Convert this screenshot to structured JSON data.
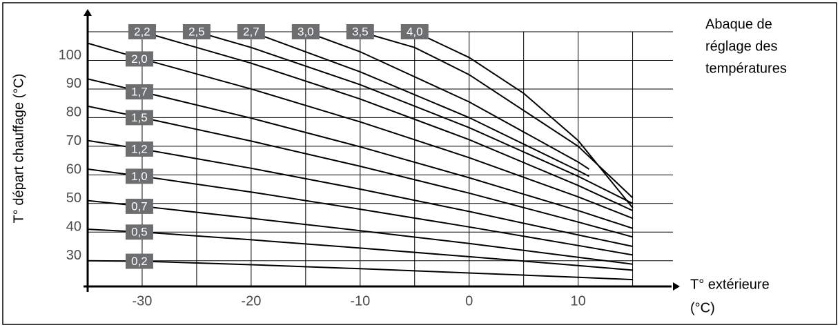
{
  "chart_data": {
    "type": "line",
    "title": [
      "Abaque de",
      "réglage des",
      "températures"
    ],
    "x_label": [
      "T° extérieure",
      "(°C)"
    ],
    "y_label": "T° départ chauffage (°C)",
    "xlim": [
      -35,
      18.7
    ],
    "ylim": [
      21,
      117
    ],
    "xticks": [
      -30,
      {
        "value": -25,
        "label": null
      },
      -20,
      {
        "value": -15,
        "label": null
      },
      -10,
      {
        "value": -5,
        "label": null
      },
      0,
      {
        "value": 5,
        "label": null
      },
      10,
      {
        "value": 15,
        "label": null
      }
    ],
    "yticks": [
      30,
      40,
      50,
      60,
      70,
      80,
      90,
      100,
      {
        "value": 110,
        "label": null
      }
    ],
    "grid": true,
    "color": "#000000",
    "label_color": "#6d6e70",
    "series": [
      {
        "name": "0,2",
        "x": [
          -35,
          -30,
          -20,
          -10,
          0,
          10,
          15
        ],
        "values": [
          30,
          29.8,
          28.6,
          27.2,
          25.7,
          24.2,
          23.4
        ]
      },
      {
        "name": "0,5",
        "x": [
          -35,
          -30,
          -20,
          -10,
          0,
          10,
          15
        ],
        "values": [
          41,
          40,
          37.3,
          34.4,
          31.4,
          28.3,
          26.7
        ]
      },
      {
        "name": "0,7",
        "x": [
          -35,
          -30,
          -20,
          -10,
          0,
          10,
          15
        ],
        "values": [
          51,
          49,
          44.8,
          40.5,
          36,
          31.2,
          28.8
        ]
      },
      {
        "name": "1,0",
        "x": [
          -35,
          -30,
          -20,
          -10,
          0,
          10,
          15
        ],
        "values": [
          62,
          59.5,
          54,
          48,
          41.8,
          35.3,
          32
        ]
      },
      {
        "name": "1,2",
        "x": [
          -35,
          -30,
          -20,
          -10,
          0,
          10,
          15
        ],
        "values": [
          72,
          69,
          62.3,
          55,
          47.2,
          39,
          35
        ]
      },
      {
        "name": "1,5",
        "x": [
          -35,
          -30,
          -20,
          -10,
          0,
          10,
          15
        ],
        "values": [
          84,
          80,
          71.8,
          63,
          53.6,
          43.5,
          38.3
        ]
      },
      {
        "name": "1,7",
        "x": [
          -35,
          -30,
          -20,
          -10,
          0,
          10,
          15
        ],
        "values": [
          93.5,
          89,
          79.8,
          69.8,
          59,
          47.5,
          41.3
        ]
      },
      {
        "name": "2,0",
        "x": [
          -35,
          -30,
          -20,
          -10,
          0,
          10,
          15
        ],
        "values": [
          106,
          100.5,
          90,
          78.5,
          66,
          52.3,
          44.8
        ]
      },
      {
        "name": "2,2",
        "x": [
          -30,
          -20,
          -10,
          0,
          10,
          15
        ],
        "values": [
          110,
          99,
          86.5,
          72.3,
          56.3,
          47.5
        ]
      },
      {
        "name": "2,5",
        "x": [
          -25,
          -20,
          -10,
          0,
          10,
          15
        ],
        "values": [
          110,
          104.5,
          91.5,
          76.5,
          59.5,
          50
        ]
      },
      {
        "name": "2,7",
        "x": [
          -20,
          -10,
          0,
          10,
          11
        ],
        "values": [
          110,
          96,
          80,
          61.5,
          59.5
        ]
      },
      {
        "name": "3,0",
        "x": [
          -15,
          -10,
          0,
          10,
          11
        ],
        "values": [
          110,
          103,
          85.5,
          64.5,
          62
        ]
      },
      {
        "name": "3,5",
        "x": [
          -10,
          -5,
          0,
          10,
          15
        ],
        "values": [
          110,
          104.5,
          95,
          70,
          52
        ]
      },
      {
        "name": "4,0",
        "x": [
          -5,
          0,
          5,
          10,
          15
        ],
        "values": [
          110,
          101,
          88.5,
          72,
          48.5
        ]
      }
    ]
  }
}
